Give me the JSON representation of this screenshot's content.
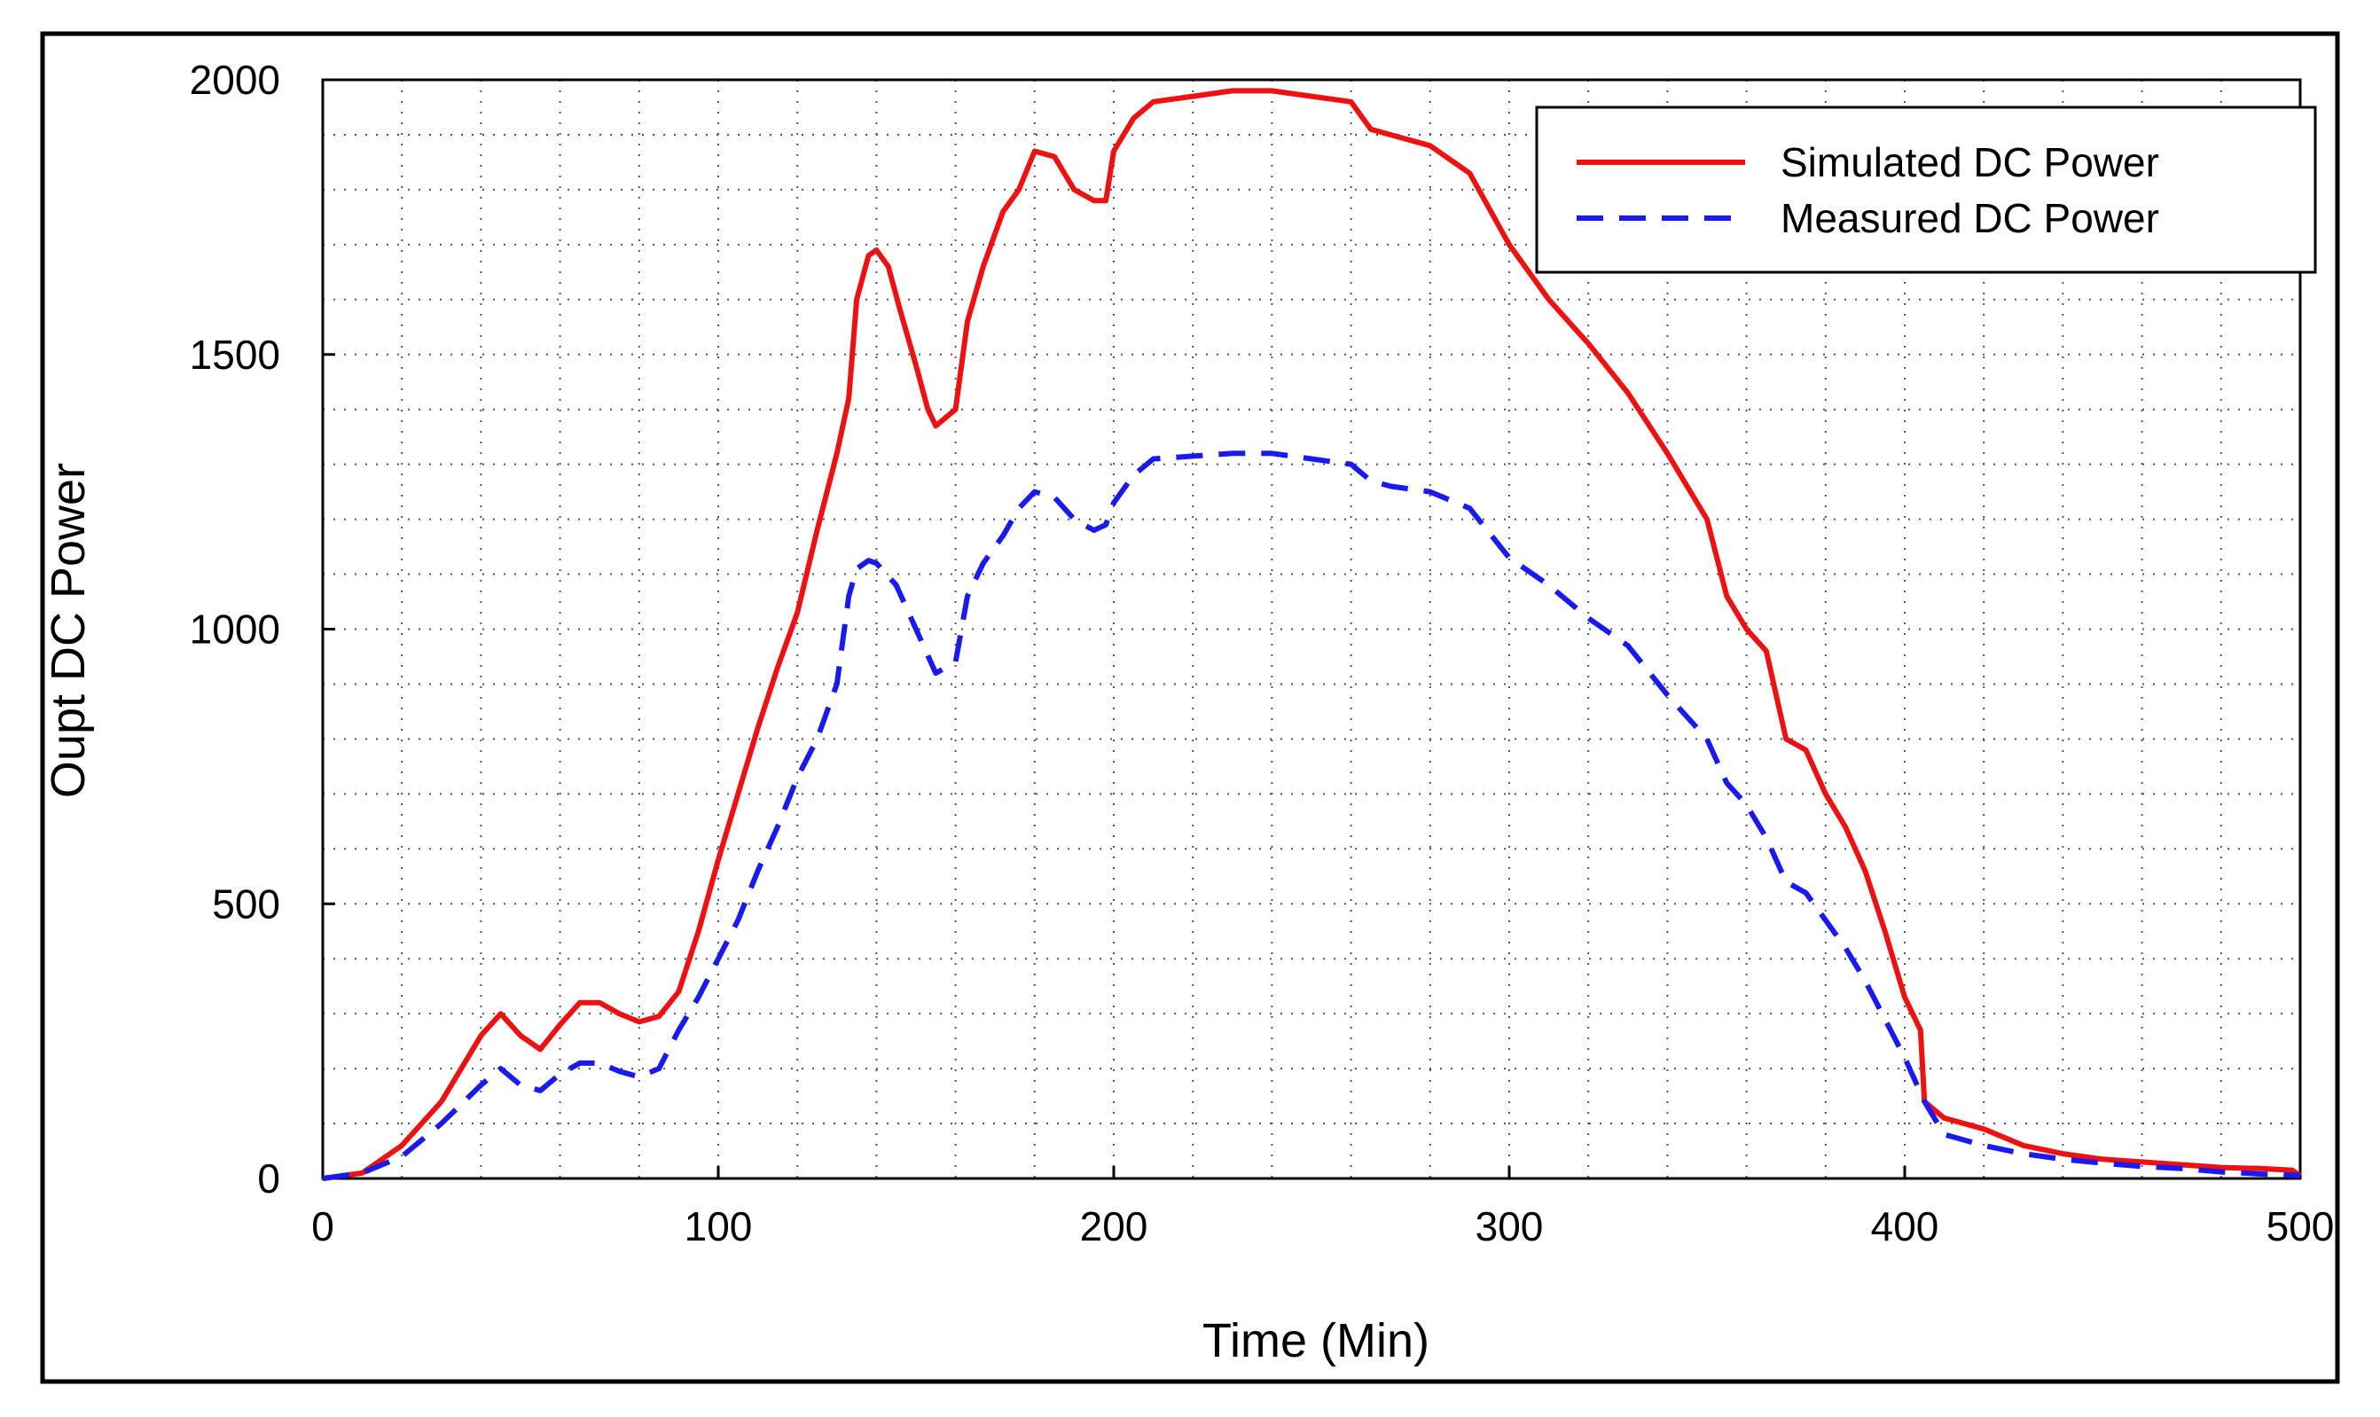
{
  "chart_data": {
    "type": "line",
    "title": "",
    "xlabel": "Time (Min)",
    "ylabel": "Oupt DC Power",
    "xlim": [
      0,
      500
    ],
    "ylim": [
      0,
      2000
    ],
    "xticks": [
      0,
      100,
      200,
      300,
      400,
      500
    ],
    "yticks": [
      0,
      500,
      1000,
      1500,
      2000
    ],
    "grid": true,
    "legend_position": "top-right",
    "series": [
      {
        "name": "Simulated DC Power",
        "color": "#ee1111",
        "style": "solid",
        "points": [
          [
            0,
            0
          ],
          [
            10,
            10
          ],
          [
            20,
            60
          ],
          [
            30,
            140
          ],
          [
            40,
            260
          ],
          [
            45,
            300
          ],
          [
            50,
            260
          ],
          [
            55,
            235
          ],
          [
            60,
            280
          ],
          [
            65,
            320
          ],
          [
            70,
            320
          ],
          [
            75,
            300
          ],
          [
            80,
            285
          ],
          [
            85,
            295
          ],
          [
            90,
            340
          ],
          [
            95,
            450
          ],
          [
            100,
            580
          ],
          [
            105,
            700
          ],
          [
            110,
            820
          ],
          [
            115,
            930
          ],
          [
            120,
            1030
          ],
          [
            125,
            1180
          ],
          [
            130,
            1320
          ],
          [
            133,
            1420
          ],
          [
            135,
            1600
          ],
          [
            138,
            1680
          ],
          [
            140,
            1690
          ],
          [
            143,
            1660
          ],
          [
            146,
            1580
          ],
          [
            150,
            1480
          ],
          [
            153,
            1400
          ],
          [
            155,
            1370
          ],
          [
            160,
            1400
          ],
          [
            163,
            1560
          ],
          [
            167,
            1660
          ],
          [
            172,
            1760
          ],
          [
            176,
            1800
          ],
          [
            180,
            1870
          ],
          [
            185,
            1860
          ],
          [
            190,
            1800
          ],
          [
            195,
            1780
          ],
          [
            198,
            1780
          ],
          [
            200,
            1870
          ],
          [
            205,
            1930
          ],
          [
            210,
            1960
          ],
          [
            220,
            1970
          ],
          [
            230,
            1980
          ],
          [
            240,
            1980
          ],
          [
            250,
            1970
          ],
          [
            260,
            1960
          ],
          [
            265,
            1910
          ],
          [
            270,
            1900
          ],
          [
            280,
            1880
          ],
          [
            290,
            1830
          ],
          [
            300,
            1700
          ],
          [
            310,
            1600
          ],
          [
            320,
            1520
          ],
          [
            330,
            1430
          ],
          [
            340,
            1320
          ],
          [
            350,
            1200
          ],
          [
            355,
            1060
          ],
          [
            360,
            1000
          ],
          [
            365,
            960
          ],
          [
            370,
            800
          ],
          [
            375,
            780
          ],
          [
            380,
            700
          ],
          [
            385,
            640
          ],
          [
            390,
            560
          ],
          [
            395,
            450
          ],
          [
            400,
            330
          ],
          [
            404,
            270
          ],
          [
            405,
            140
          ],
          [
            410,
            110
          ],
          [
            420,
            90
          ],
          [
            430,
            60
          ],
          [
            440,
            45
          ],
          [
            450,
            35
          ],
          [
            460,
            30
          ],
          [
            470,
            25
          ],
          [
            480,
            20
          ],
          [
            490,
            18
          ],
          [
            498,
            15
          ],
          [
            500,
            5
          ]
        ]
      },
      {
        "name": "Measured DC Power",
        "color": "#1a1aee",
        "style": "dashed",
        "points": [
          [
            0,
            0
          ],
          [
            10,
            10
          ],
          [
            20,
            40
          ],
          [
            30,
            100
          ],
          [
            40,
            170
          ],
          [
            45,
            200
          ],
          [
            50,
            170
          ],
          [
            55,
            160
          ],
          [
            60,
            190
          ],
          [
            65,
            210
          ],
          [
            70,
            210
          ],
          [
            75,
            195
          ],
          [
            80,
            185
          ],
          [
            85,
            200
          ],
          [
            90,
            270
          ],
          [
            95,
            330
          ],
          [
            100,
            400
          ],
          [
            105,
            470
          ],
          [
            110,
            560
          ],
          [
            115,
            640
          ],
          [
            120,
            730
          ],
          [
            125,
            800
          ],
          [
            130,
            900
          ],
          [
            133,
            1060
          ],
          [
            135,
            1110
          ],
          [
            138,
            1125
          ],
          [
            140,
            1120
          ],
          [
            145,
            1080
          ],
          [
            150,
            1000
          ],
          [
            155,
            920
          ],
          [
            160,
            940
          ],
          [
            163,
            1060
          ],
          [
            167,
            1120
          ],
          [
            172,
            1170
          ],
          [
            176,
            1220
          ],
          [
            180,
            1250
          ],
          [
            185,
            1240
          ],
          [
            190,
            1200
          ],
          [
            195,
            1180
          ],
          [
            198,
            1190
          ],
          [
            200,
            1230
          ],
          [
            205,
            1280
          ],
          [
            210,
            1310
          ],
          [
            220,
            1315
          ],
          [
            230,
            1320
          ],
          [
            240,
            1320
          ],
          [
            250,
            1310
          ],
          [
            260,
            1300
          ],
          [
            265,
            1270
          ],
          [
            270,
            1260
          ],
          [
            280,
            1250
          ],
          [
            290,
            1220
          ],
          [
            300,
            1130
          ],
          [
            310,
            1080
          ],
          [
            320,
            1020
          ],
          [
            330,
            970
          ],
          [
            340,
            880
          ],
          [
            350,
            800
          ],
          [
            355,
            720
          ],
          [
            360,
            680
          ],
          [
            365,
            620
          ],
          [
            370,
            540
          ],
          [
            375,
            520
          ],
          [
            380,
            470
          ],
          [
            385,
            420
          ],
          [
            390,
            360
          ],
          [
            395,
            290
          ],
          [
            400,
            220
          ],
          [
            405,
            140
          ],
          [
            410,
            80
          ],
          [
            420,
            60
          ],
          [
            430,
            45
          ],
          [
            440,
            35
          ],
          [
            450,
            28
          ],
          [
            460,
            22
          ],
          [
            470,
            18
          ],
          [
            480,
            12
          ],
          [
            490,
            8
          ],
          [
            498,
            6
          ],
          [
            500,
            5
          ]
        ]
      }
    ]
  }
}
